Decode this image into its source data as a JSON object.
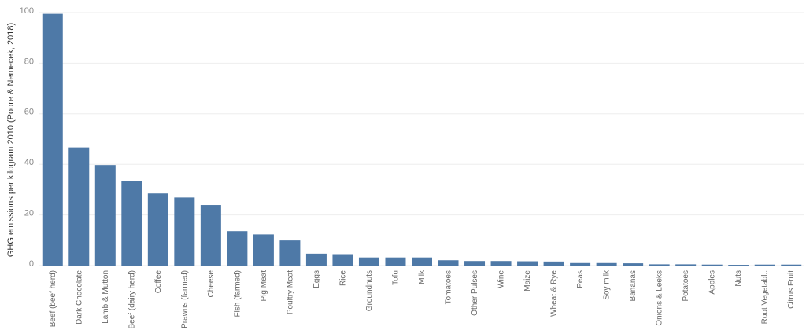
{
  "chart_data": {
    "type": "bar",
    "y_label": "GHG emissions per kilogram 2010 (Poore & Nemecek, 2018)",
    "categories": [
      "Beef (beef herd)",
      "Dark Chocolate",
      "Lamb & Mutton",
      "Beef (dairy herd)",
      "Coffee",
      "Prawns (farmed)",
      "Cheese",
      "Fish (farmed)",
      "Pig Meat",
      "Poultry Meat",
      "Eggs",
      "Rice",
      "Groundnuts",
      "Tofu",
      "Milk",
      "Tomatoes",
      "Other Pulses",
      "Wine",
      "Maize",
      "Wheat & Rye",
      "Peas",
      "Soy milk",
      "Bananas",
      "Onions & Leeks",
      "Potatoes",
      "Apples",
      "Nuts",
      "Root Vegetabl..",
      "Citrus Fruit"
    ],
    "values": [
      99.5,
      46.7,
      39.7,
      33.3,
      28.5,
      26.9,
      23.9,
      13.6,
      12.3,
      9.9,
      4.7,
      4.5,
      3.2,
      3.2,
      3.2,
      2.1,
      1.8,
      1.8,
      1.7,
      1.6,
      1.0,
      1.0,
      0.9,
      0.5,
      0.5,
      0.4,
      0.3,
      0.4,
      0.4
    ],
    "color": "#4e79a7",
    "ylim": [
      0,
      100
    ],
    "yticks": [
      0,
      20,
      40,
      60,
      80,
      100
    ],
    "grid": true
  }
}
